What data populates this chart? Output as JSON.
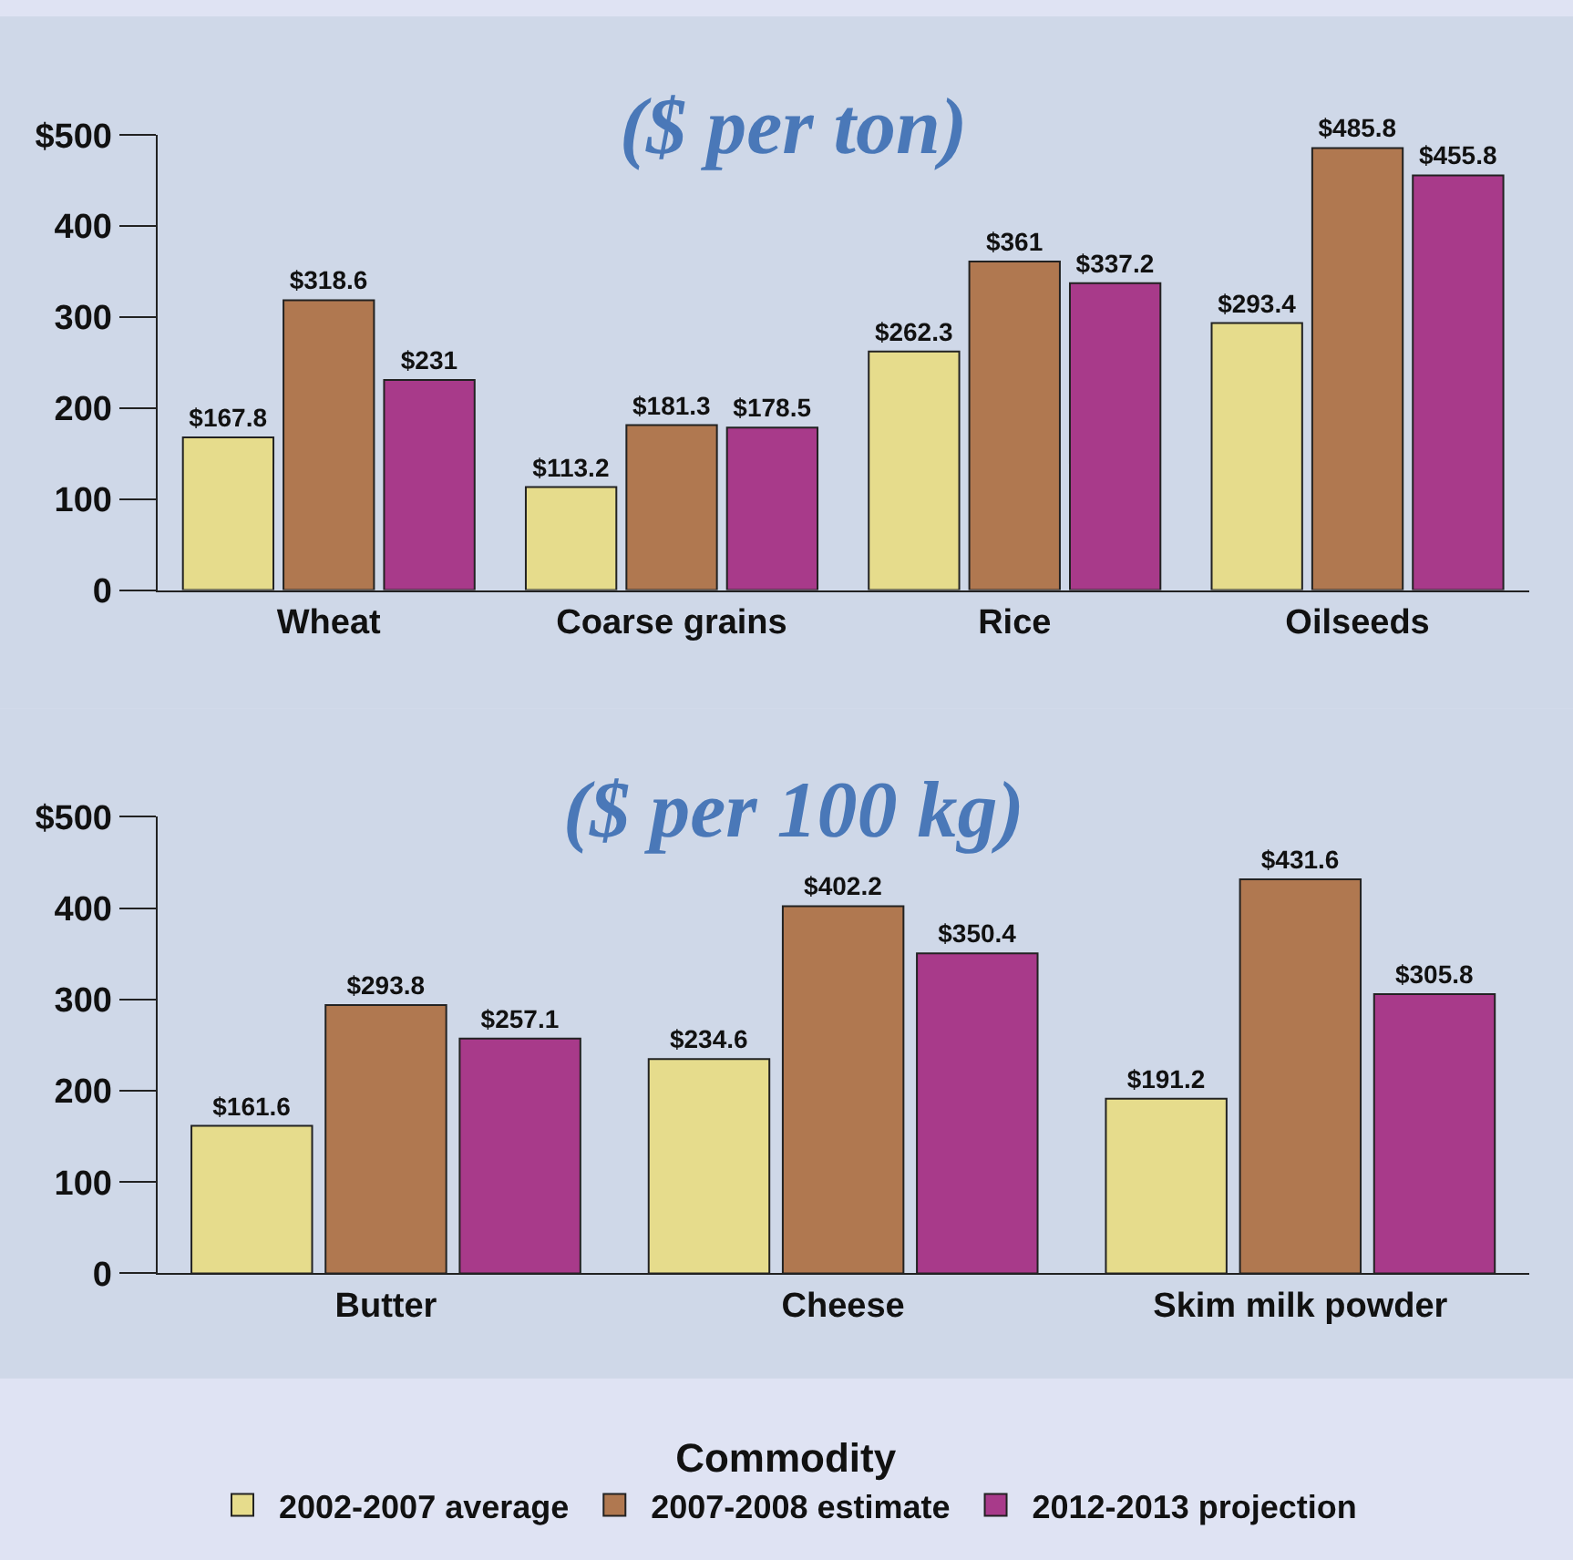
{
  "chart_data": [
    {
      "type": "bar",
      "title": "($ per ton)",
      "categories": [
        "Wheat",
        "Coarse grains",
        "Rice",
        "Oilseeds"
      ],
      "series": [
        {
          "color": "#e6dc8c",
          "values": [
            167.8,
            113.2,
            262.3,
            293.4
          ],
          "value_labels": [
            "$167.8",
            "$113.2",
            "$262.3",
            "$293.4"
          ]
        },
        {
          "color": "#b07850",
          "values": [
            318.6,
            181.3,
            361,
            485.8
          ],
          "value_labels": [
            "$318.6",
            "$181.3",
            "$361",
            "$485.8"
          ]
        },
        {
          "color": "#a83a8a",
          "values": [
            231,
            178.5,
            337.2,
            455.8
          ],
          "value_labels": [
            "$231",
            "$178.5",
            "$337.2",
            "$455.8"
          ]
        }
      ],
      "ylim": [
        0,
        500
      ],
      "yticks": [
        0,
        100,
        200,
        300,
        400,
        {
          "value": 500,
          "label": "$500"
        }
      ],
      "grid": false
    },
    {
      "type": "bar",
      "title": "($ per 100 kg)",
      "categories": [
        "Butter",
        "Cheese",
        "Skim milk powder"
      ],
      "series": [
        {
          "name": "2002-2007 average",
          "color": "#e6dc8c",
          "values": [
            161.6,
            234.6,
            191.2
          ],
          "value_labels": [
            "$161.6",
            "$234.6",
            "$191.2"
          ]
        },
        {
          "name": "2007-2008 estimate",
          "color": "#b07850",
          "values": [
            293.8,
            402.2,
            431.6
          ],
          "value_labels": [
            "$293.8",
            "$402.2",
            "$431.6"
          ]
        },
        {
          "name": "2012-2013 projection",
          "color": "#a83a8a",
          "values": [
            257.1,
            350.4,
            305.8
          ],
          "value_labels": [
            "$257.1",
            "$350.4",
            "$305.8"
          ]
        }
      ],
      "ylim": [
        0,
        500
      ],
      "yticks": [
        0,
        100,
        200,
        300,
        400,
        {
          "value": 500,
          "label": "$500"
        }
      ],
      "grid": false,
      "legend": "bottom",
      "legend_title": "Commodity"
    }
  ]
}
